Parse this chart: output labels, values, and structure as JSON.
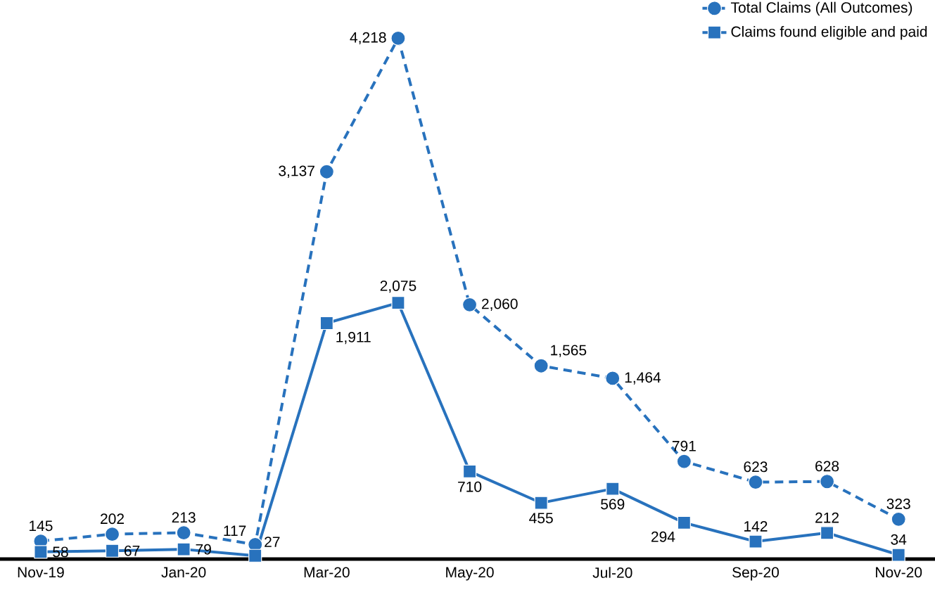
{
  "chart_data": {
    "type": "line",
    "categories": [
      "Nov-19",
      null,
      "Jan-20",
      null,
      "Mar-20",
      null,
      "May-20",
      null,
      "Jul-20",
      null,
      "Sep-20",
      null,
      "Nov-20"
    ],
    "series": [
      {
        "name": "Total Claims (All Outcomes)",
        "color": "#2872bd",
        "marker": "circle",
        "line_style": "dashed",
        "values": [
          145,
          202,
          213,
          117,
          3137,
          4218,
          2060,
          1565,
          1464,
          791,
          623,
          628,
          323
        ],
        "value_labels": [
          "145",
          "202",
          "213",
          "117",
          "3,137",
          "4,218",
          "2,060",
          "1,565",
          "1,464",
          "791",
          "623",
          "628",
          "323"
        ]
      },
      {
        "name": "Claims found eligible and paid",
        "color": "#2872bd",
        "marker": "square",
        "line_style": "solid",
        "values": [
          58,
          67,
          79,
          27,
          1911,
          2075,
          710,
          455,
          569,
          294,
          142,
          212,
          34
        ],
        "value_labels": [
          "58",
          "67",
          "79",
          "27",
          "1,911",
          "2,075",
          "710",
          "455",
          "569",
          "294",
          "142",
          "212",
          "34"
        ]
      }
    ],
    "legend": "top right"
  }
}
